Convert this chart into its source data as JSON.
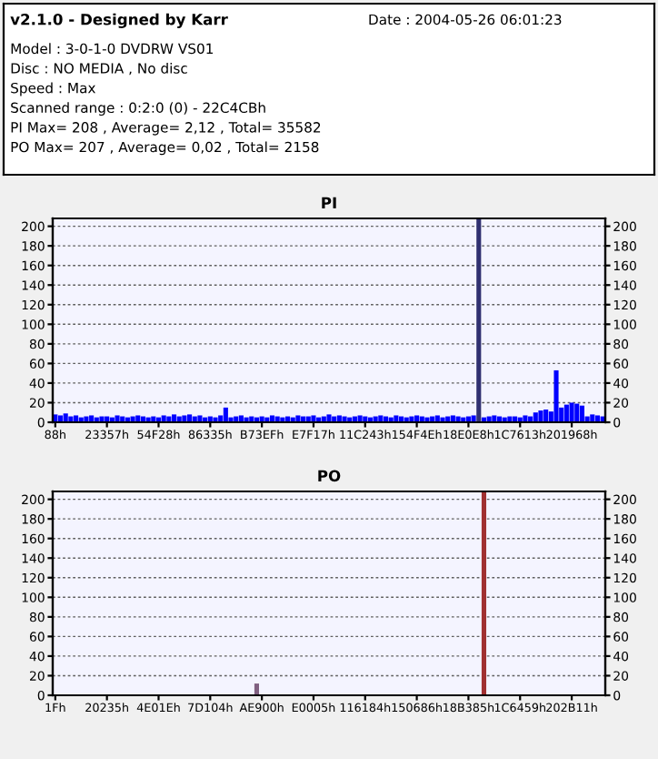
{
  "chart_data": [
    {
      "type": "other",
      "title": "v2.1.0 - Designed by Karr",
      "annotations": [
        "Date : 2004-05-26 06:01:23",
        "Model : 3-0-1-0 DVDRW VS01",
        "Disc : NO MEDIA , No disc",
        "Speed : Max",
        "Scanned range : 0:2:0 (0) - 22C4CBh",
        "PI Max= 208 , Average= 2,12 , Total= 35582",
        "PO Max= 207 , Average= 0,02 , Total= 2158"
      ]
    },
    {
      "type": "bar",
      "title": "PI",
      "grid": "y",
      "ylim": [
        0,
        208
      ],
      "y2lim": [
        0,
        208
      ],
      "categories": [
        "88h",
        null,
        null,
        null,
        null,
        null,
        null,
        null,
        null,
        null,
        "23357h",
        null,
        null,
        null,
        null,
        null,
        null,
        null,
        null,
        null,
        "54F28h",
        null,
        null,
        null,
        null,
        null,
        null,
        null,
        null,
        null,
        "86335h",
        null,
        null,
        null,
        null,
        null,
        null,
        null,
        null,
        null,
        "B73EFh",
        null,
        null,
        null,
        null,
        null,
        null,
        null,
        null,
        null,
        "E7F17h",
        null,
        null,
        null,
        null,
        null,
        null,
        null,
        null,
        null,
        "11C243h",
        null,
        null,
        null,
        null,
        null,
        null,
        null,
        null,
        null,
        "154F4Eh",
        null,
        null,
        null,
        null,
        null,
        null,
        null,
        null,
        null,
        "18E0E8h",
        null,
        null,
        null,
        null,
        null,
        null,
        null,
        null,
        null,
        "1C7613h",
        null,
        null,
        null,
        null,
        null,
        null,
        null,
        null,
        null,
        "201968h",
        null,
        null,
        null,
        null,
        null,
        null
      ],
      "yticks": [
        0,
        20,
        40,
        60,
        80,
        100,
        120,
        140,
        160,
        180,
        200
      ],
      "y2ticks": [
        0,
        20,
        40,
        60,
        80,
        100,
        120,
        140,
        160,
        180,
        200
      ],
      "series": [
        {
          "values": [
            8,
            7,
            9,
            6,
            7,
            5,
            6,
            7,
            5,
            6,
            6,
            5,
            7,
            6,
            5,
            6,
            7,
            6,
            5,
            6,
            5,
            7,
            6,
            8,
            6,
            7,
            8,
            6,
            7,
            5,
            6,
            5,
            7,
            15,
            5,
            6,
            7,
            5,
            6,
            5,
            6,
            5,
            7,
            6,
            5,
            6,
            5,
            7,
            6,
            6,
            7,
            5,
            6,
            8,
            6,
            7,
            6,
            5,
            6,
            7,
            6,
            5,
            6,
            7,
            6,
            5,
            7,
            6,
            5,
            6,
            7,
            6,
            5,
            6,
            7,
            5,
            6,
            7,
            6,
            5,
            6,
            7,
            208,
            5,
            6,
            7,
            6,
            5,
            6,
            6,
            5,
            7,
            6,
            10,
            12,
            13,
            11,
            53,
            15,
            18,
            20,
            19,
            17,
            6,
            8,
            7,
            6
          ],
          "colors": [
            "#0000ff",
            "#0000ff",
            "#0000ff",
            "#0000ff",
            "#0000ff",
            "#0000ff",
            "#0000ff",
            "#0000ff",
            "#0000ff",
            "#0000ff",
            "#0000ff",
            "#0000ff",
            "#0000ff",
            "#0000ff",
            "#0000ff",
            "#0000ff",
            "#0000ff",
            "#0000ff",
            "#0000ff",
            "#0000ff",
            "#0000ff",
            "#0000ff",
            "#0000ff",
            "#0000ff",
            "#0000ff",
            "#0000ff",
            "#0000ff",
            "#0000ff",
            "#0000ff",
            "#0000ff",
            "#0000ff",
            "#0000ff",
            "#0000ff",
            "#0000ff",
            "#0000ff",
            "#0000ff",
            "#0000ff",
            "#0000ff",
            "#0000ff",
            "#0000ff",
            "#0000ff",
            "#0000ff",
            "#0000ff",
            "#0000ff",
            "#0000ff",
            "#0000ff",
            "#0000ff",
            "#0000ff",
            "#0000ff",
            "#0000ff",
            "#0000ff",
            "#0000ff",
            "#0000ff",
            "#0000ff",
            "#0000ff",
            "#0000ff",
            "#0000ff",
            "#0000ff",
            "#0000ff",
            "#0000ff",
            "#0000ff",
            "#0000ff",
            "#0000ff",
            "#0000ff",
            "#0000ff",
            "#0000ff",
            "#0000ff",
            "#0000ff",
            "#0000ff",
            "#0000ff",
            "#0000ff",
            "#0000ff",
            "#0000ff",
            "#0000ff",
            "#0000ff",
            "#0000ff",
            "#0000ff",
            "#0000ff",
            "#0000ff",
            "#0000ff",
            "#0000ff",
            "#0000ff",
            "#303070",
            "#0000ff",
            "#0000ff",
            "#0000ff",
            "#0000ff",
            "#0000ff",
            "#0000ff",
            "#0000ff",
            "#0000ff",
            "#0000ff",
            "#0000ff",
            "#0000ff",
            "#0000ff",
            "#0000ff",
            "#0000ff",
            "#0000ff",
            "#0000ff",
            "#0000ff",
            "#0000ff",
            "#0000ff",
            "#0000ff",
            "#0000ff",
            "#0000ff",
            "#0000ff",
            "#0000ff"
          ]
        }
      ]
    },
    {
      "type": "bar",
      "title": "PO",
      "grid": "y",
      "ylim": [
        0,
        208
      ],
      "y2lim": [
        0,
        208
      ],
      "categories": [
        "1Fh",
        null,
        null,
        null,
        null,
        null,
        null,
        null,
        null,
        null,
        "20235h",
        null,
        null,
        null,
        null,
        null,
        null,
        null,
        null,
        null,
        "4E01Eh",
        null,
        null,
        null,
        null,
        null,
        null,
        null,
        null,
        null,
        "7D104h",
        null,
        null,
        null,
        null,
        null,
        null,
        null,
        null,
        null,
        "AE900h",
        null,
        null,
        null,
        null,
        null,
        null,
        null,
        null,
        null,
        "E0005h",
        null,
        null,
        null,
        null,
        null,
        null,
        null,
        null,
        null,
        "116184h",
        null,
        null,
        null,
        null,
        null,
        null,
        null,
        null,
        null,
        "150686h",
        null,
        null,
        null,
        null,
        null,
        null,
        null,
        null,
        null,
        "18B385h",
        null,
        null,
        null,
        null,
        null,
        null,
        null,
        null,
        null,
        "1C6459h",
        null,
        null,
        null,
        null,
        null,
        null,
        null,
        null,
        null,
        "202B11h",
        null,
        null,
        null,
        null,
        null,
        null
      ],
      "yticks": [
        0,
        20,
        40,
        60,
        80,
        100,
        120,
        140,
        160,
        180,
        200
      ],
      "y2ticks": [
        0,
        20,
        40,
        60,
        80,
        100,
        120,
        140,
        160,
        180,
        200
      ],
      "series": [
        {
          "values": [
            0,
            0,
            0,
            0,
            0,
            0,
            0,
            0,
            0,
            0,
            0,
            0,
            0,
            0,
            0,
            0,
            0,
            0,
            0,
            0,
            0,
            0,
            0,
            0,
            0,
            0,
            0,
            0,
            0,
            0,
            0,
            0,
            0,
            0,
            0,
            0,
            0,
            0,
            0,
            12,
            0,
            0,
            0,
            0,
            0,
            0,
            0,
            0,
            0,
            0,
            0,
            0,
            0,
            0,
            0,
            0,
            0,
            0,
            0,
            0,
            0,
            0,
            0,
            0,
            0,
            0,
            0,
            0,
            0,
            0,
            0,
            0,
            0,
            0,
            0,
            0,
            0,
            0,
            0,
            0,
            0,
            0,
            0,
            207,
            0,
            0,
            0,
            0,
            0,
            0,
            0,
            0,
            0,
            0,
            0,
            0,
            0,
            0,
            0,
            0,
            0,
            0,
            0,
            0,
            0,
            0,
            0
          ],
          "colors": [
            "#a03030",
            "#a03030",
            "#a03030",
            "#a03030",
            "#a03030",
            "#a03030",
            "#a03030",
            "#a03030",
            "#a03030",
            "#a03030",
            "#a03030",
            "#a03030",
            "#a03030",
            "#a03030",
            "#a03030",
            "#a03030",
            "#a03030",
            "#a03030",
            "#a03030",
            "#a03030",
            "#a03030",
            "#a03030",
            "#a03030",
            "#a03030",
            "#a03030",
            "#a03030",
            "#a03030",
            "#a03030",
            "#a03030",
            "#a03030",
            "#a03030",
            "#a03030",
            "#a03030",
            "#a03030",
            "#a03030",
            "#a03030",
            "#a03030",
            "#a03030",
            "#a03030",
            "#806080",
            "#a03030",
            "#a03030",
            "#a03030",
            "#a03030",
            "#a03030",
            "#a03030",
            "#a03030",
            "#a03030",
            "#a03030",
            "#a03030",
            "#a03030",
            "#a03030",
            "#a03030",
            "#a03030",
            "#a03030",
            "#a03030",
            "#a03030",
            "#a03030",
            "#a03030",
            "#a03030",
            "#a03030",
            "#a03030",
            "#a03030",
            "#a03030",
            "#a03030",
            "#a03030",
            "#a03030",
            "#a03030",
            "#a03030",
            "#a03030",
            "#a03030",
            "#a03030",
            "#a03030",
            "#a03030",
            "#a03030",
            "#a03030",
            "#a03030",
            "#a03030",
            "#a03030",
            "#a03030",
            "#a03030",
            "#a03030",
            "#a03030",
            "#a03030",
            "#a03030",
            "#a03030",
            "#a03030",
            "#a03030",
            "#a03030",
            "#a03030",
            "#a03030",
            "#a03030",
            "#a03030",
            "#a03030",
            "#a03030",
            "#a03030",
            "#a03030",
            "#a03030",
            "#a03030",
            "#a03030",
            "#a03030",
            "#a03030",
            "#a03030",
            "#a03030",
            "#a03030",
            "#a03030",
            "#a03030"
          ]
        }
      ]
    }
  ]
}
